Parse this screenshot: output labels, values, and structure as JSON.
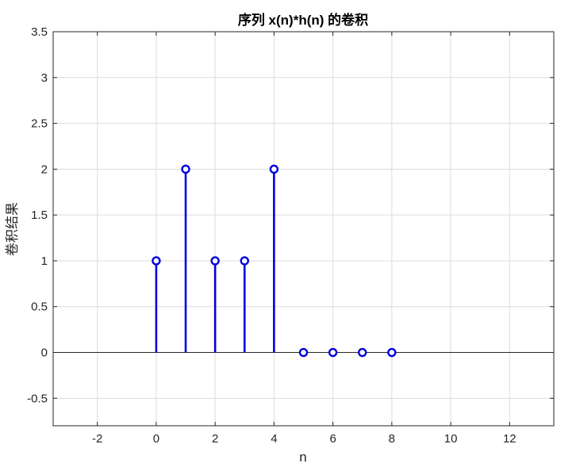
{
  "chart_data": {
    "type": "stem",
    "title": "序列 x(n)*h(n) 的卷积",
    "xlabel": "n",
    "ylabel": "卷积结果",
    "xlim": [
      -3.5,
      13.5
    ],
    "ylim": [
      -0.8,
      3.5
    ],
    "xticks": [
      -2,
      0,
      2,
      4,
      6,
      8,
      10,
      12
    ],
    "yticks": [
      -0.5,
      0,
      0.5,
      1,
      1.5,
      2,
      2.5,
      3,
      3.5
    ],
    "grid": true,
    "baseline": 0,
    "series": [
      {
        "color": "#0000dd",
        "marker": "circle-open",
        "x": [
          0,
          1,
          2,
          3,
          4,
          5,
          6,
          7,
          8
        ],
        "y": [
          1,
          2,
          1,
          1,
          2,
          0,
          0,
          0,
          0
        ]
      }
    ]
  }
}
